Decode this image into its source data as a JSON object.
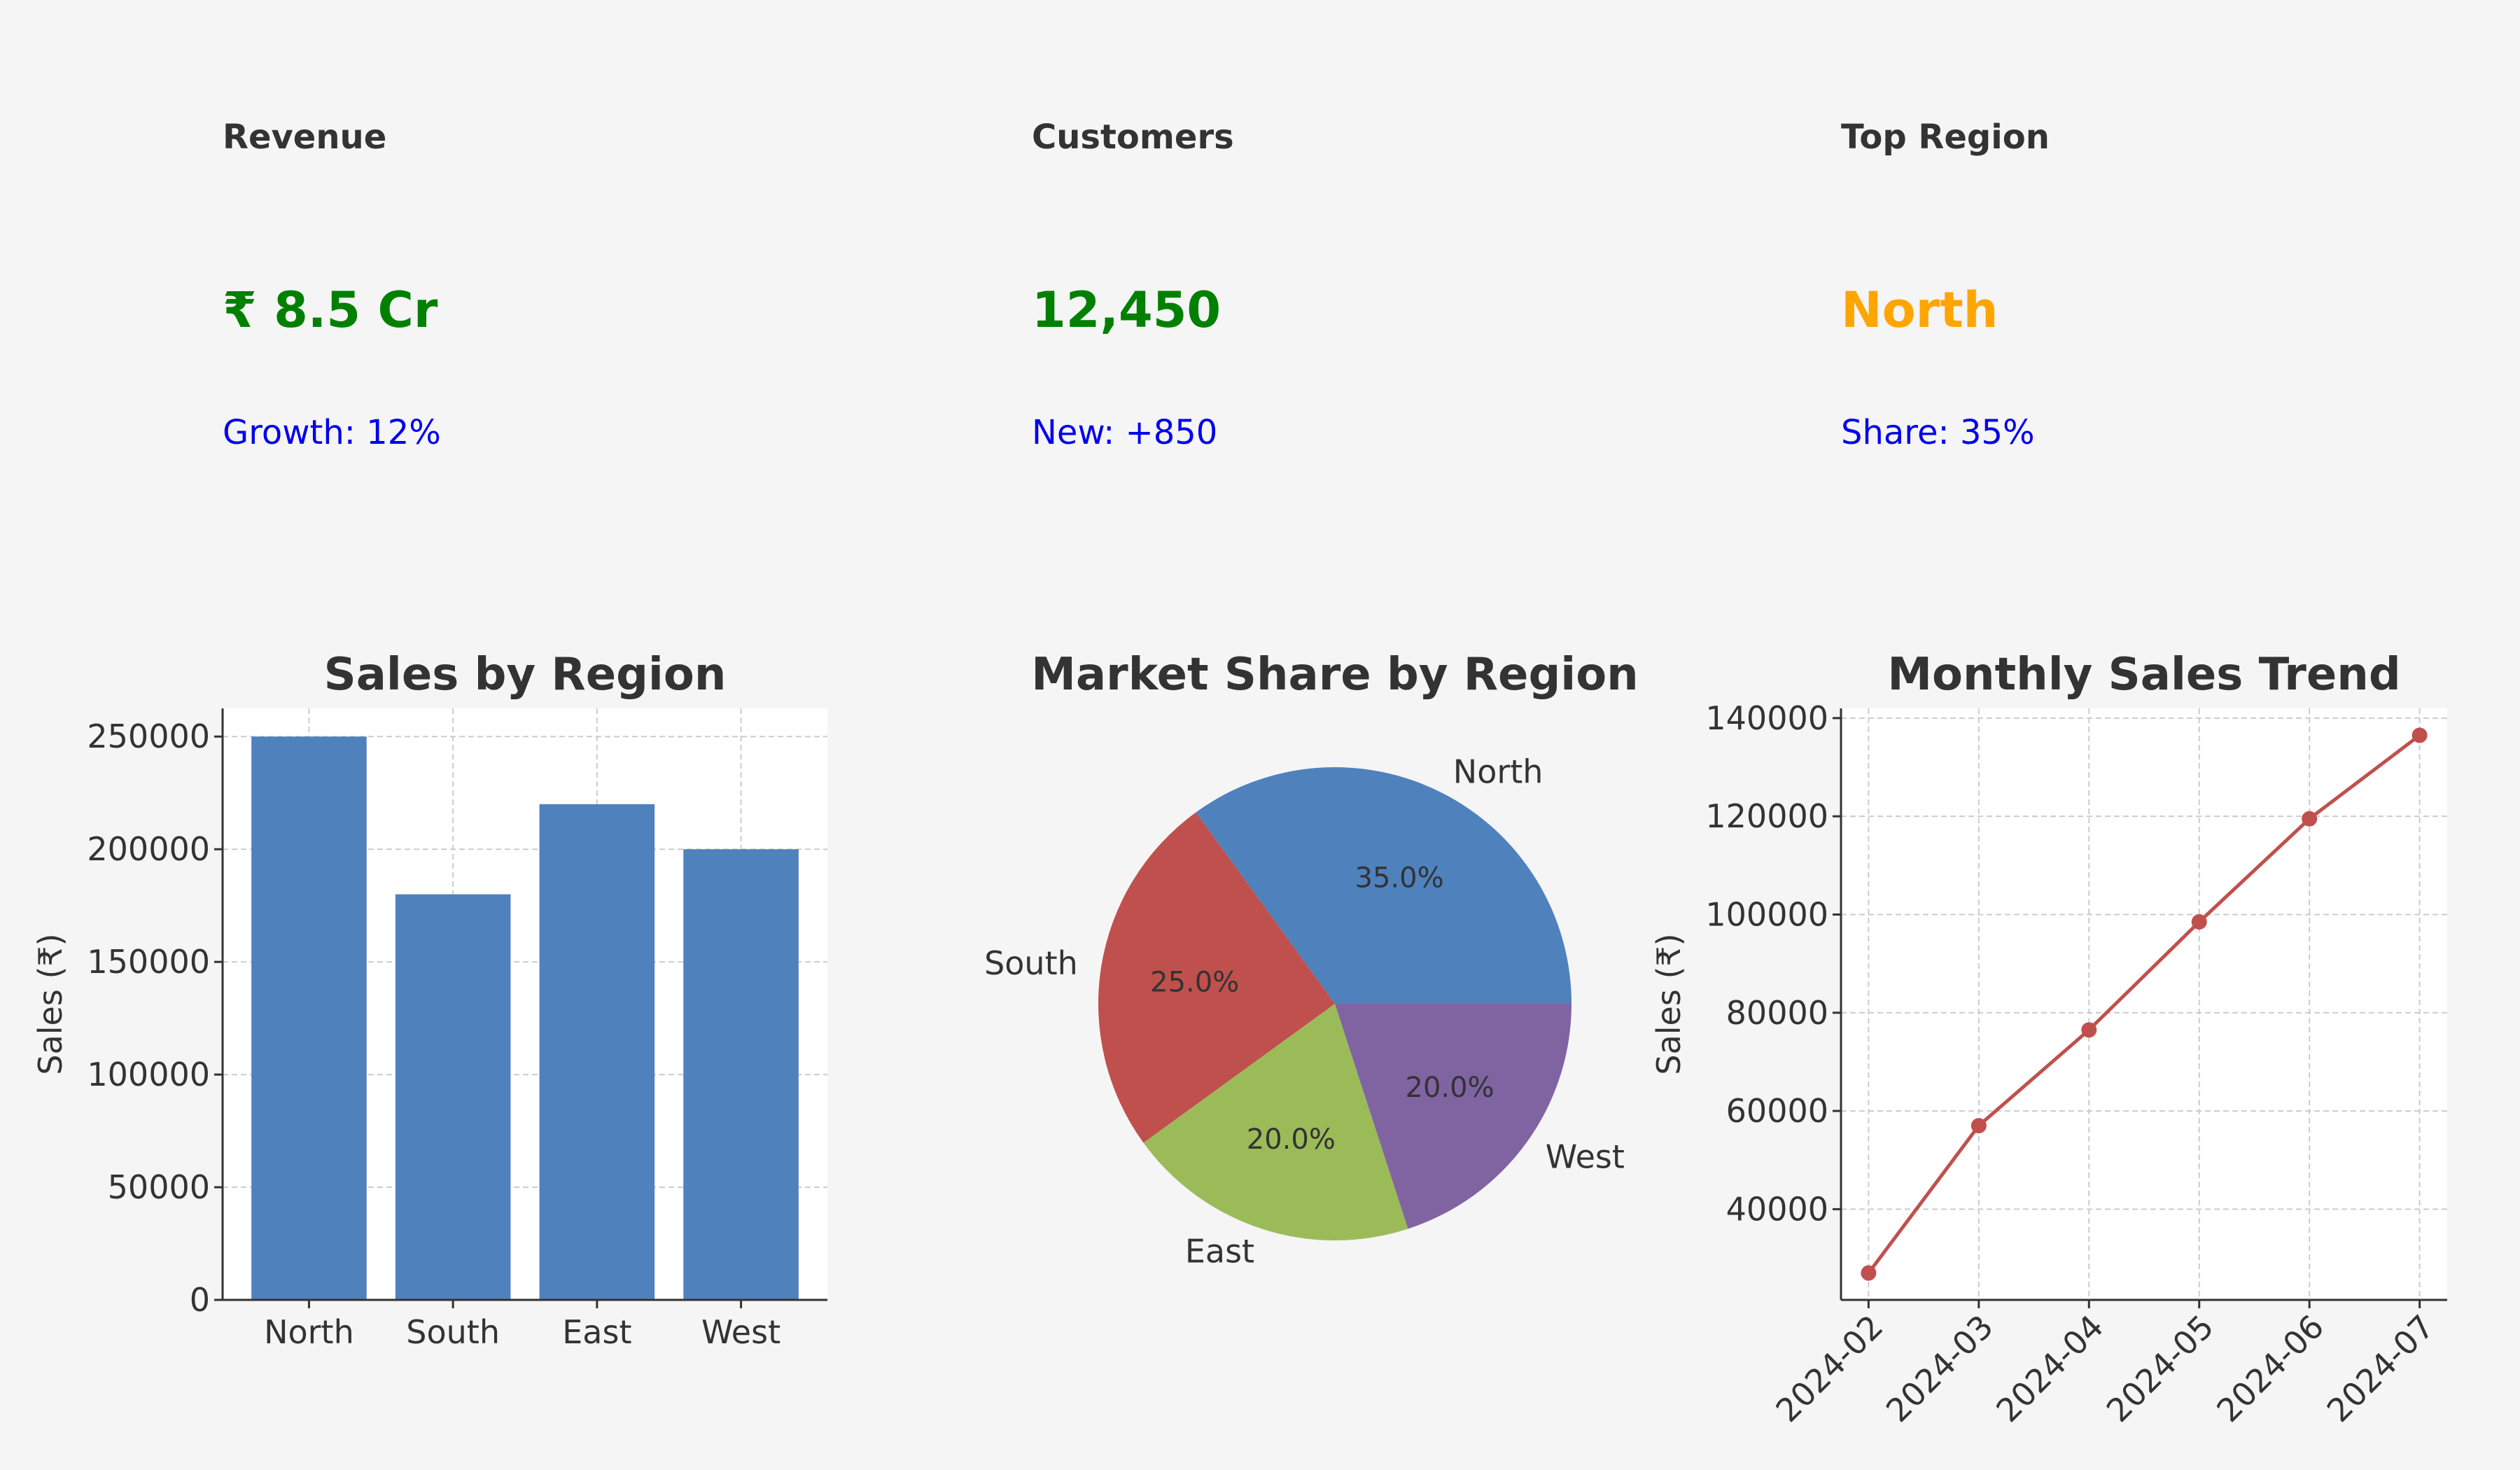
{
  "kpis": [
    {
      "title": "Revenue",
      "value": "₹ 8.5 Cr",
      "sub": "Growth: 12%",
      "value_color": "#008000"
    },
    {
      "title": "Customers",
      "value": "12,450",
      "sub": "New: +850",
      "value_color": "#008000"
    },
    {
      "title": "Top Region",
      "value": "North",
      "sub": "Share: 35%",
      "value_color": "#ffa500"
    }
  ],
  "sub_color": "#0000ee",
  "chart_data": [
    {
      "type": "bar",
      "title": "Sales by Region",
      "xlabel": "",
      "ylabel": "Sales (₹)",
      "categories": [
        "North",
        "South",
        "East",
        "West"
      ],
      "values": [
        250000,
        180000,
        220000,
        200000
      ],
      "ylim": [
        0,
        262500
      ],
      "yticks": [
        0,
        50000,
        100000,
        150000,
        200000,
        250000
      ],
      "color": "#4f81bd",
      "grid": true
    },
    {
      "type": "pie",
      "title": "Market Share by Region",
      "labels": [
        "North",
        "South",
        "East",
        "West"
      ],
      "values": [
        35,
        25,
        20,
        20
      ],
      "autopct": [
        "35.0%",
        "25.0%",
        "20.0%",
        "20.0%"
      ],
      "colors": [
        "#4f81bd",
        "#c0504d",
        "#9bbb59",
        "#8064a2"
      ]
    },
    {
      "type": "line",
      "title": "Monthly Sales Trend",
      "xlabel": "",
      "ylabel": "Sales (₹)",
      "x": [
        "2024-02",
        "2024-03",
        "2024-04",
        "2024-05",
        "2024-06",
        "2024-07"
      ],
      "values": [
        27000,
        57000,
        76500,
        98500,
        119500,
        136500
      ],
      "yticks": [
        40000,
        60000,
        80000,
        100000,
        120000,
        140000
      ],
      "color": "#c0504d",
      "grid": true
    }
  ]
}
